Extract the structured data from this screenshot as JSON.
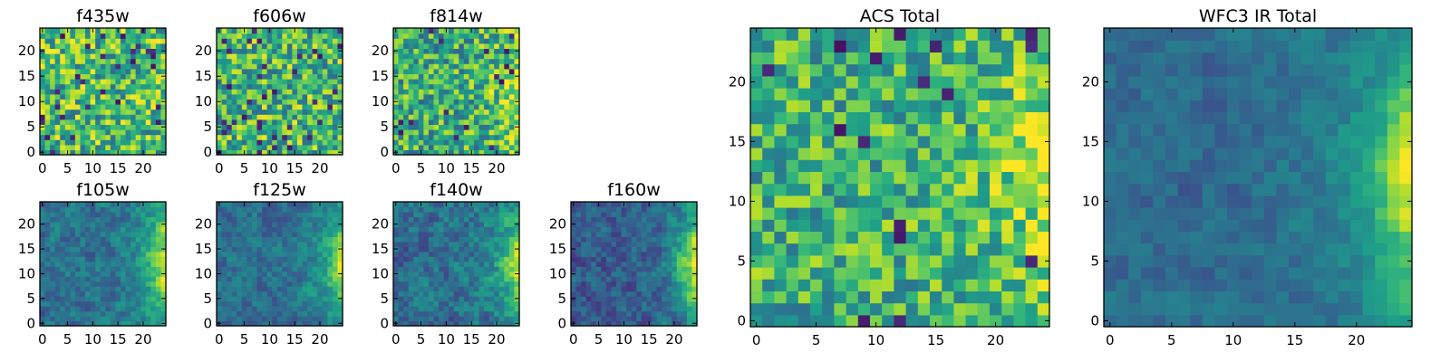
{
  "figure": {
    "colormap_stops": [
      "#440154",
      "#482878",
      "#3e4989",
      "#31688e",
      "#26828e",
      "#1f9e89",
      "#35b779",
      "#6ece58",
      "#b5de2b",
      "#fde725"
    ]
  },
  "chart_data": [
    {
      "type": "heatmap",
      "title": "f435w",
      "grid_size": 25,
      "xlim": [
        0,
        24
      ],
      "ylim": [
        0,
        24
      ],
      "xticks": [
        0,
        5,
        10,
        15,
        20
      ],
      "yticks": [
        0,
        5,
        10,
        15,
        20
      ],
      "pattern": "uniform-noise",
      "seed": 11,
      "mean_level": 0.68,
      "noise_level": 0.32
    },
    {
      "type": "heatmap",
      "title": "f606w",
      "grid_size": 25,
      "xlim": [
        0,
        24
      ],
      "ylim": [
        0,
        24
      ],
      "xticks": [
        0,
        5,
        10,
        15,
        20
      ],
      "yticks": [
        0,
        5,
        10,
        15,
        20
      ],
      "pattern": "uniform-noise",
      "seed": 23,
      "mean_level": 0.66,
      "noise_level": 0.32
    },
    {
      "type": "heatmap",
      "title": "f814w",
      "grid_size": 25,
      "xlim": [
        0,
        24
      ],
      "ylim": [
        0,
        24
      ],
      "xticks": [
        0,
        5,
        10,
        15,
        20
      ],
      "yticks": [
        0,
        5,
        10,
        15,
        20
      ],
      "pattern": "noise-with-right-edge-brightening",
      "seed": 37,
      "mean_level": 0.62,
      "noise_level": 0.3,
      "edge_strength": 0.35
    },
    {
      "type": "heatmap",
      "title": "f105w",
      "grid_size": 25,
      "xlim": [
        0,
        24
      ],
      "ylim": [
        0,
        24
      ],
      "xticks": [
        0,
        5,
        10,
        15,
        20
      ],
      "yticks": [
        0,
        5,
        10,
        15,
        20
      ],
      "pattern": "dark-field-bright-right-edge",
      "seed": 41,
      "mean_level": 0.38,
      "noise_level": 0.22,
      "edge_strength": 0.6
    },
    {
      "type": "heatmap",
      "title": "f125w",
      "grid_size": 25,
      "xlim": [
        0,
        24
      ],
      "ylim": [
        0,
        24
      ],
      "xticks": [
        0,
        5,
        10,
        15,
        20
      ],
      "yticks": [
        0,
        5,
        10,
        15,
        20
      ],
      "pattern": "dark-field-bright-right-edge",
      "seed": 53,
      "mean_level": 0.36,
      "noise_level": 0.2,
      "edge_strength": 0.62
    },
    {
      "type": "heatmap",
      "title": "f140w",
      "grid_size": 25,
      "xlim": [
        0,
        24
      ],
      "ylim": [
        0,
        24
      ],
      "xticks": [
        0,
        5,
        10,
        15,
        20
      ],
      "yticks": [
        0,
        5,
        10,
        15,
        20
      ],
      "pattern": "dark-field-bright-right-edge",
      "seed": 67,
      "mean_level": 0.37,
      "noise_level": 0.24,
      "edge_strength": 0.6
    },
    {
      "type": "heatmap",
      "title": "f160w",
      "grid_size": 25,
      "xlim": [
        0,
        24
      ],
      "ylim": [
        0,
        24
      ],
      "xticks": [
        0,
        5,
        10,
        15,
        20
      ],
      "yticks": [
        0,
        5,
        10,
        15,
        20
      ],
      "pattern": "dark-field-bright-right-edge",
      "seed": 79,
      "mean_level": 0.3,
      "noise_level": 0.22,
      "edge_strength": 0.72
    },
    {
      "type": "heatmap",
      "title": "ACS Total",
      "grid_size": 25,
      "xlim": [
        0,
        24
      ],
      "ylim": [
        0,
        24
      ],
      "xticks": [
        0,
        5,
        10,
        15,
        20
      ],
      "yticks": [
        0,
        5,
        10,
        15,
        20
      ],
      "pattern": "noise-with-right-edge-brightening",
      "seed": 97,
      "mean_level": 0.64,
      "noise_level": 0.26,
      "edge_strength": 0.3
    },
    {
      "type": "heatmap",
      "title": "WFC3 IR Total",
      "grid_size": 25,
      "xlim": [
        0,
        24
      ],
      "ylim": [
        0,
        24
      ],
      "xticks": [
        0,
        5,
        10,
        15,
        20
      ],
      "yticks": [
        0,
        5,
        10,
        15,
        20
      ],
      "pattern": "dark-field-bright-right-edge",
      "seed": 103,
      "mean_level": 0.35,
      "noise_level": 0.14,
      "edge_strength": 0.62
    }
  ]
}
